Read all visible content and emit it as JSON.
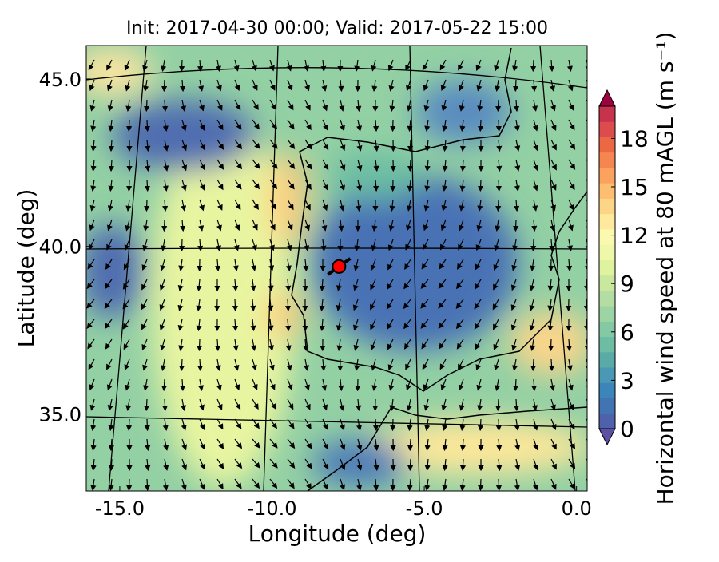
{
  "chart_data": {
    "type": "map",
    "title": "Init: 2017-04-30 00:00; Valid: 2017-05-22 15:00",
    "x_label": "Longitude (deg)",
    "y_label": "Latitude (deg)",
    "xlim": [
      -16.1,
      0.35
    ],
    "ylim": [
      32.7,
      46.0
    ],
    "xticks": [
      {
        "value": -15,
        "label": "-15.0"
      },
      {
        "value": -10,
        "label": "-10.0"
      },
      {
        "value": -5,
        "label": "-5.0"
      },
      {
        "value": 0,
        "label": "0.0"
      }
    ],
    "yticks": [
      {
        "value": 35,
        "label": "35.0"
      },
      {
        "value": 40,
        "label": "40.0"
      },
      {
        "value": 45,
        "label": "45.0"
      }
    ],
    "marker": {
      "lon": -7.8,
      "lat": 39.4,
      "color": "#ff0000"
    },
    "colorbar": {
      "label": "Horizontal wind speed at 80 mAGL (m s⁻¹)",
      "lim": [
        0,
        20
      ],
      "ticks": [
        0,
        3,
        6,
        9,
        12,
        15,
        18
      ],
      "colors": [
        "#5e4fa2",
        "#4f61aa",
        "#4273b3",
        "#3b85b8",
        "#4a98b5",
        "#5aaaa8",
        "#6cbda3",
        "#85c9a4",
        "#9dd4a4",
        "#b3dda2",
        "#c9e89e",
        "#def2a0",
        "#eef8a8",
        "#fbf8b0",
        "#fee99c",
        "#fdd586",
        "#fdbe70",
        "#fba35e",
        "#f6864f",
        "#ec6844",
        "#dc4b4d",
        "#c7324c",
        "#9e0142"
      ]
    }
  }
}
